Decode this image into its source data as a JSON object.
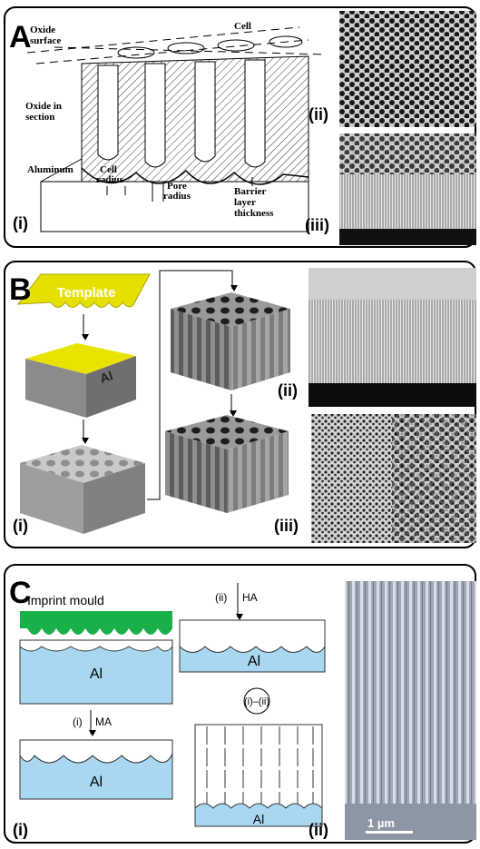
{
  "panel_a": {
    "label": "A",
    "oxide_surface": [
      "Oxide",
      "surface"
    ],
    "cell": "Cell",
    "oxide_in_section": [
      "Oxide in",
      "section"
    ],
    "aluminum": "Aluminum",
    "cell_radius": [
      "Cell",
      "radius"
    ],
    "pore_radius": [
      "Pore",
      "radius"
    ],
    "barrier": [
      "Barrier",
      "layer",
      "thickness"
    ],
    "sub_labels": [
      "(i)",
      "(ii)",
      "(iii)"
    ]
  },
  "panel_b": {
    "label": "B",
    "template": "Template",
    "al": "Al",
    "sub_labels": [
      "(i)",
      "(ii)",
      "(iii)"
    ]
  },
  "panel_c": {
    "label": "C",
    "imprint_mould": "Imprint mould",
    "al": [
      "Al",
      "Al",
      "Al",
      "Al"
    ],
    "step_ma": [
      "(i)",
      "MA"
    ],
    "step_ha": [
      "(ii)",
      "HA"
    ],
    "cycle": "(i)–(ii)",
    "scale_bar": "1 µm",
    "sub_labels": [
      "(i)",
      "(ii)"
    ]
  }
}
